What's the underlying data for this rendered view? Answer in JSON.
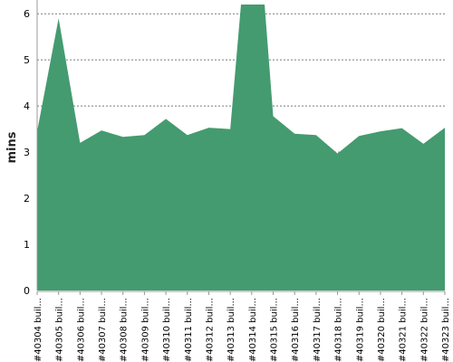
{
  "chart_data": {
    "type": "area",
    "title": "",
    "xlabel": "",
    "ylabel": "mins",
    "ylim": [
      0,
      6.2
    ],
    "yticks": [
      0,
      1,
      2,
      3,
      4,
      5,
      6
    ],
    "grid": true,
    "legend": "none",
    "color": "#449b6f",
    "categories": [
      "#40304 buil...",
      "#40305 buil...",
      "#40306 buil...",
      "#40307 buil...",
      "#40308 buil...",
      "#40309 buil...",
      "#40310 buil...",
      "#40311 buil...",
      "#40312 buil...",
      "#40313 buil...",
      "#40314 buil...",
      "#40315 buil...",
      "#40316 buil...",
      "#40317 buil...",
      "#40318 buil...",
      "#40319 buil...",
      "#40320 buil...",
      "#40321 buil...",
      "#40322 buil...",
      "#40323 buil..."
    ],
    "points": [
      {
        "x": 0.0,
        "y": 3.45
      },
      {
        "x": 1.0,
        "y": 5.9
      },
      {
        "x": 2.0,
        "y": 3.2
      },
      {
        "x": 3.0,
        "y": 3.47
      },
      {
        "x": 4.0,
        "y": 3.33
      },
      {
        "x": 5.0,
        "y": 3.37
      },
      {
        "x": 6.0,
        "y": 3.72
      },
      {
        "x": 7.0,
        "y": 3.37
      },
      {
        "x": 8.0,
        "y": 3.53
      },
      {
        "x": 9.0,
        "y": 3.5
      },
      {
        "x": 9.5,
        "y": 6.2
      },
      {
        "x": 10.6,
        "y": 6.2
      },
      {
        "x": 11.0,
        "y": 3.78
      },
      {
        "x": 12.0,
        "y": 3.4
      },
      {
        "x": 13.0,
        "y": 3.37
      },
      {
        "x": 14.0,
        "y": 2.97
      },
      {
        "x": 15.0,
        "y": 3.35
      },
      {
        "x": 16.0,
        "y": 3.45
      },
      {
        "x": 17.0,
        "y": 3.52
      },
      {
        "x": 18.0,
        "y": 3.18
      },
      {
        "x": 19.0,
        "y": 3.53
      }
    ]
  }
}
